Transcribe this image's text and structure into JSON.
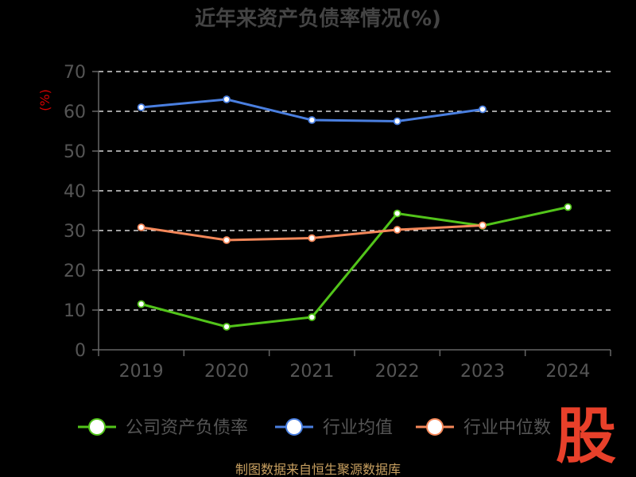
{
  "chart_data": {
    "type": "line",
    "title": "近年来资产负债率情况(%)",
    "ylabel": "(%)",
    "ylim": [
      0,
      70
    ],
    "yticks": [
      0,
      10,
      20,
      30,
      40,
      50,
      60,
      70
    ],
    "categories": [
      "2019",
      "2020",
      "2021",
      "2022",
      "2023",
      "2024"
    ],
    "grid": true,
    "legend_position": "bottom",
    "series": [
      {
        "name": "公司资产负债率",
        "color": "#52c41a",
        "values": [
          11.5,
          5.8,
          8.2,
          34.3,
          31.2,
          35.9
        ]
      },
      {
        "name": "行业均值",
        "color": "#4a7fe0",
        "values": [
          61.0,
          63.0,
          57.8,
          57.5,
          60.5,
          null
        ]
      },
      {
        "name": "行业中位数",
        "color": "#f5885a",
        "values": [
          30.8,
          27.6,
          28.1,
          30.2,
          31.3,
          null
        ]
      }
    ]
  },
  "source": "制图数据来自恒生聚源数据库",
  "logo_text": "股"
}
